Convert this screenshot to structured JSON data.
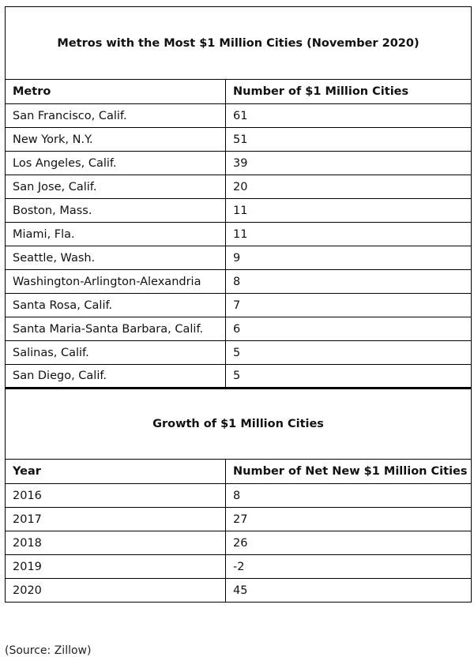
{
  "table1": {
    "title": "Metros with the Most $1 Million Cities (November 2020)",
    "headers": [
      "Metro",
      "Number of $1 Million Cities"
    ],
    "rows": [
      [
        "San Francisco, Calif.",
        "61"
      ],
      [
        "New York, N.Y.",
        "51"
      ],
      [
        "Los Angeles, Calif.",
        "39"
      ],
      [
        "San Jose, Calif.",
        "20"
      ],
      [
        "Boston, Mass.",
        "11"
      ],
      [
        "Miami, Fla.",
        "11"
      ],
      [
        "Seattle, Wash.",
        "9"
      ],
      [
        "Washington-Arlington-Alexandria",
        "8"
      ],
      [
        "Santa Rosa, Calif.",
        "7"
      ],
      [
        "Santa Maria-Santa Barbara, Calif.",
        "6"
      ],
      [
        "Salinas, Calif.",
        "5"
      ],
      [
        "San Diego, Calif.",
        "5"
      ]
    ]
  },
  "table2": {
    "title": "Growth of $1 Million Cities",
    "headers": [
      "Year",
      "Number of Net New $1 Million Cities"
    ],
    "rows": [
      [
        "2016",
        "8"
      ],
      [
        "2017",
        "27"
      ],
      [
        "2018",
        "26"
      ],
      [
        "2019",
        "-2"
      ],
      [
        "2020",
        "45"
      ]
    ]
  },
  "source": "(Source: Zillow)"
}
